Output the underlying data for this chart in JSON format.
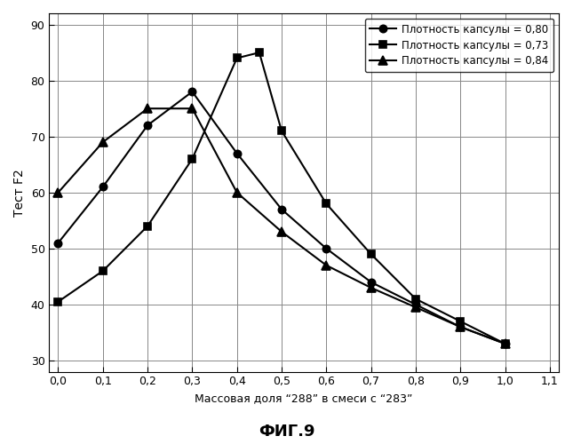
{
  "series": [
    {
      "label": "Плотность капсулы = 0,80",
      "x": [
        0.0,
        0.1,
        0.2,
        0.3,
        0.4,
        0.5,
        0.6,
        0.7,
        0.8,
        0.9,
        1.0
      ],
      "y": [
        51,
        61,
        72,
        78,
        67,
        57,
        50,
        44,
        40,
        36,
        33
      ],
      "marker": "o",
      "markerfacecolor": "#000000",
      "linewidth": 1.5,
      "markersize": 6
    },
    {
      "label": "Плотность капсулы = 0,73",
      "x": [
        0.0,
        0.1,
        0.2,
        0.3,
        0.4,
        0.45,
        0.5,
        0.6,
        0.7,
        0.8,
        0.9,
        1.0
      ],
      "y": [
        40.5,
        46,
        54,
        66,
        84,
        85,
        71,
        58,
        49,
        41,
        37,
        33
      ],
      "marker": "s",
      "markerfacecolor": "#000000",
      "linewidth": 1.5,
      "markersize": 6
    },
    {
      "label": "Плотность капсулы = 0,84",
      "x": [
        0.0,
        0.1,
        0.2,
        0.3,
        0.4,
        0.5,
        0.6,
        0.7,
        0.8,
        0.9,
        1.0
      ],
      "y": [
        60,
        69,
        75,
        75,
        60,
        53,
        47,
        43,
        39.5,
        36,
        33
      ],
      "marker": "^",
      "markerfacecolor": "#000000",
      "linewidth": 1.5,
      "markersize": 7
    }
  ],
  "xlabel": "Массовая доля \"288\" в смеси с \"283\"",
  "ylabel": "Тест F2",
  "title": "ФИГ.9",
  "xlim": [
    -0.02,
    1.12
  ],
  "ylim": [
    28,
    92
  ],
  "xticks": [
    0.0,
    0.1,
    0.2,
    0.3,
    0.4,
    0.5,
    0.6,
    0.7,
    0.8,
    0.9,
    1.0,
    1.1
  ],
  "yticks": [
    30,
    40,
    50,
    60,
    70,
    80,
    90
  ],
  "background_color": "#ffffff",
  "figsize": [
    6.45,
    5.0
  ],
  "dpi": 100
}
